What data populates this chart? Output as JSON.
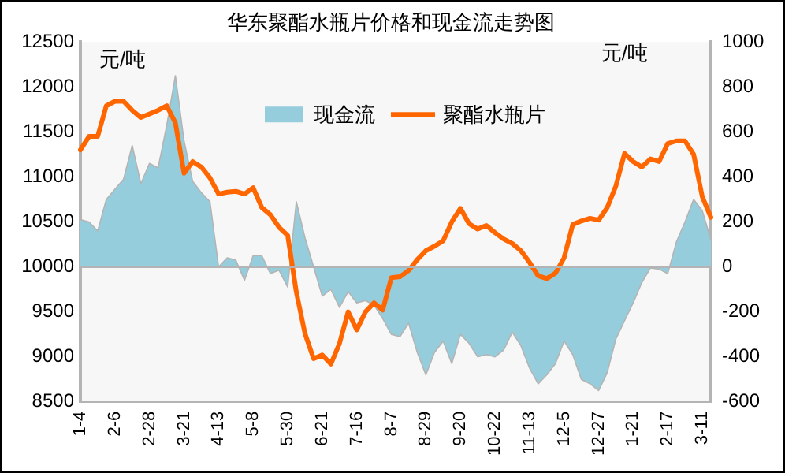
{
  "chart_data": {
    "type": "line",
    "title": "华东聚酯水瓶片价格和现金流走势图",
    "ylabel": "元/吨",
    "y2label": "元/吨",
    "categories": [
      "1-4",
      null,
      null,
      null,
      "2-6",
      null,
      null,
      null,
      "2-28",
      null,
      null,
      null,
      "3-21",
      null,
      null,
      null,
      "4-13",
      null,
      null,
      null,
      "5-8",
      null,
      null,
      null,
      "5-30",
      null,
      null,
      null,
      "6-21",
      null,
      null,
      null,
      "7-16",
      null,
      null,
      null,
      "8-7",
      null,
      null,
      null,
      "8-29",
      null,
      null,
      null,
      "9-20",
      null,
      null,
      null,
      "10-22",
      null,
      null,
      null,
      "11-13",
      null,
      null,
      null,
      "12-5",
      null,
      null,
      null,
      "12-27",
      null,
      null,
      null,
      "1-21",
      null,
      null,
      null,
      "2-17",
      null,
      null,
      null,
      "3-11",
      null
    ],
    "series": [
      {
        "name": "现金流",
        "type": "area",
        "axis": "y2",
        "color": "#96cddc",
        "values": [
          210,
          200,
          160,
          300,
          345,
          390,
          540,
          370,
          460,
          440,
          630,
          850,
          560,
          380,
          330,
          290,
          0,
          40,
          30,
          -60,
          50,
          50,
          -30,
          -15,
          -90,
          290,
          130,
          0,
          -130,
          -100,
          -180,
          -110,
          -160,
          -150,
          -170,
          -230,
          -300,
          -310,
          -250,
          -380,
          -480,
          -380,
          -330,
          -430,
          -300,
          -340,
          -400,
          -390,
          -400,
          -370,
          -290,
          -350,
          -450,
          -520,
          -480,
          -430,
          -330,
          -390,
          -500,
          -520,
          -550,
          -470,
          -320,
          -240,
          -160,
          -70,
          -5,
          -10,
          -30,
          110,
          200,
          300,
          250,
          120
        ]
      },
      {
        "name": "聚酯水瓶片",
        "color": "#ff6600",
        "values": [
          11300,
          11450,
          11450,
          11790,
          11840,
          11840,
          11740,
          11660,
          11700,
          11740,
          11790,
          11600,
          11040,
          11170,
          11110,
          10990,
          10810,
          10830,
          10840,
          10810,
          10880,
          10660,
          10580,
          10440,
          10350,
          9720,
          9260,
          8980,
          9020,
          8920,
          9150,
          9500,
          9300,
          9500,
          9600,
          9520,
          9880,
          9890,
          9960,
          10080,
          10180,
          10230,
          10290,
          10500,
          10650,
          10480,
          10420,
          10460,
          10380,
          10310,
          10260,
          10180,
          10050,
          9900,
          9870,
          9930,
          10100,
          10470,
          10510,
          10540,
          10520,
          10660,
          10900,
          11260,
          11170,
          11110,
          11200,
          11170,
          11370,
          11400,
          11400,
          11250,
          10780,
          10550
        ]
      }
    ],
    "ylim": [
      8500,
      12500
    ],
    "yticks": [
      8500,
      9000,
      9500,
      10000,
      10500,
      11000,
      11500,
      12000,
      12500
    ],
    "y2lim": [
      -600,
      1000
    ],
    "y2ticks": [
      -600,
      -400,
      -200,
      0,
      200,
      400,
      600,
      800,
      1000
    ],
    "ref_lines": [
      {
        "axis": "y2",
        "value": 0,
        "color": "#b4b4b4"
      }
    ],
    "legend": "top",
    "grid": false
  }
}
